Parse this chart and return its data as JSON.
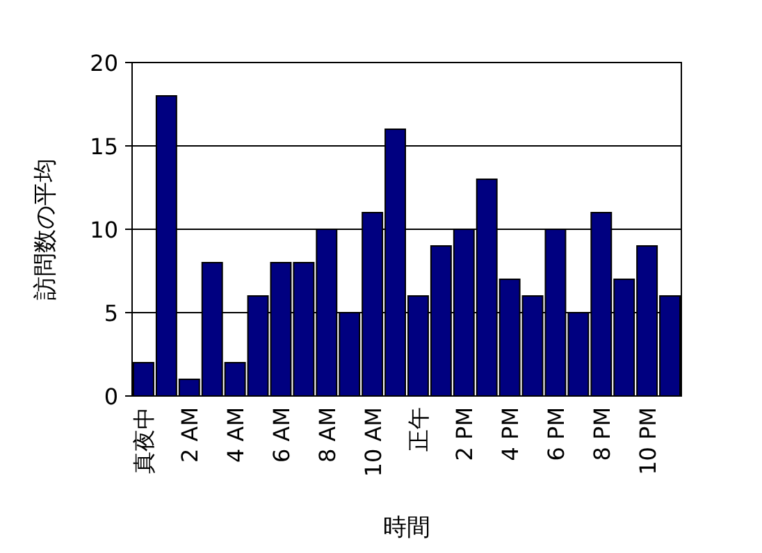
{
  "chart_data": {
    "type": "bar",
    "categories": [
      "真夜中",
      null,
      "2 AM",
      null,
      "4 AM",
      null,
      "6 AM",
      null,
      "8 AM",
      null,
      "10 AM",
      null,
      "正午",
      null,
      "2 PM",
      null,
      "4 PM",
      null,
      "6 PM",
      null,
      "8 PM",
      null,
      "10 PM",
      null
    ],
    "values": [
      2,
      18,
      1,
      8,
      2,
      6,
      8,
      8,
      10,
      5,
      11,
      16,
      6,
      9,
      10,
      13,
      7,
      6,
      10,
      5,
      11,
      7,
      9,
      6
    ],
    "color": "#000080",
    "xlabel": "時間",
    "ylabel": "訪問数の平均",
    "ylim": [
      0,
      20
    ],
    "yticks": [
      0,
      5,
      10,
      15,
      20
    ],
    "grid": "y"
  }
}
